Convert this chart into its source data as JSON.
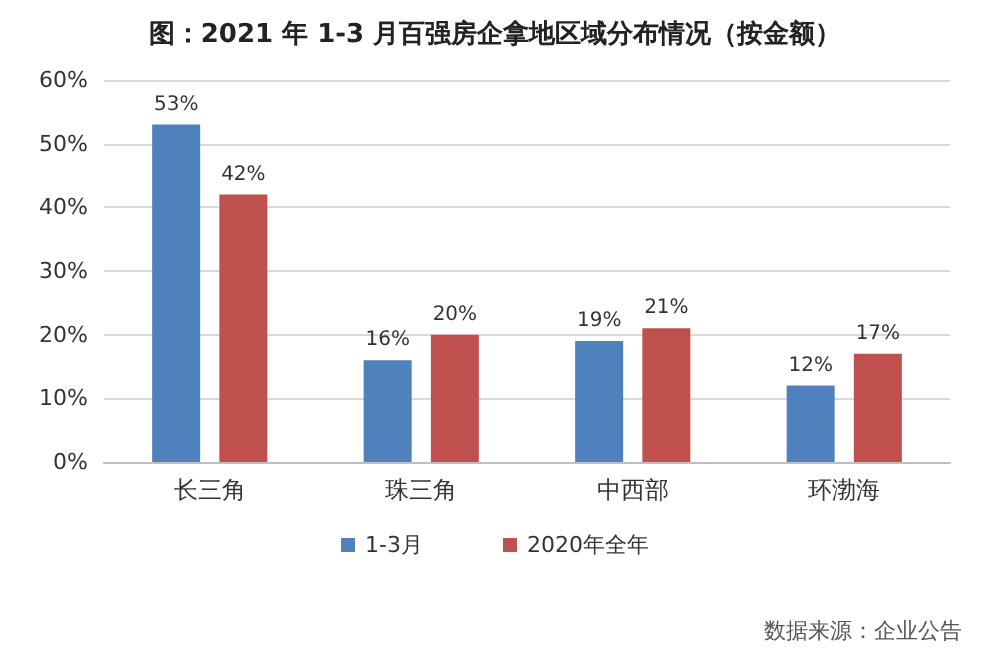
{
  "chart_data": {
    "type": "bar",
    "title": "图：2021 年 1-3 月百强房企拿地区域分布情况（按金额）",
    "categories": [
      "长三角",
      "珠三角",
      "中西部",
      "环渤海"
    ],
    "series": [
      {
        "name": "1-3月",
        "color": "#4f81bd",
        "values": [
          53,
          16,
          19,
          12
        ],
        "value_labels": [
          "53%",
          "16%",
          "19%",
          "12%"
        ]
      },
      {
        "name": "2020年全年",
        "color": "#c0504d",
        "values": [
          42,
          20,
          21,
          17
        ],
        "value_labels": [
          "42%",
          "20%",
          "21%",
          "17%"
        ]
      }
    ],
    "ylim": [
      0,
      60
    ],
    "yticks": [
      {
        "value": 0,
        "label": "0%"
      },
      {
        "value": 10,
        "label": "10%"
      },
      {
        "value": 20,
        "label": "20%"
      },
      {
        "value": 30,
        "label": "30%"
      },
      {
        "value": 40,
        "label": "40%"
      },
      {
        "value": 50,
        "label": "50%"
      },
      {
        "value": 60,
        "label": "60%"
      }
    ],
    "grid": "y",
    "legend": "bottom",
    "annotations": [
      "数据来源：企业公告"
    ]
  }
}
